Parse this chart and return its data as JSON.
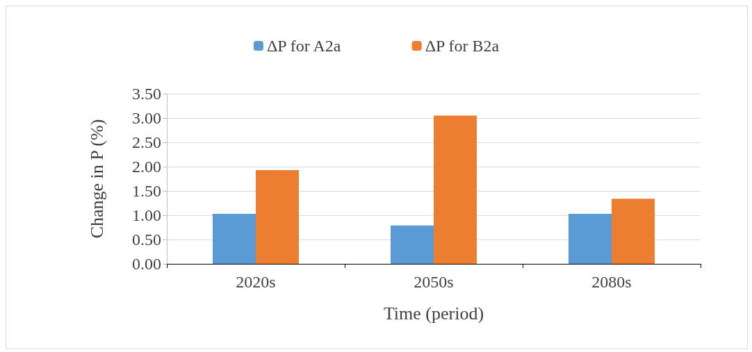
{
  "chart_data": {
    "type": "bar",
    "xlabel": "Time (period)",
    "ylabel": "Change in P (%)",
    "categories": [
      "2020s",
      "2050s",
      "2080s"
    ],
    "series": [
      {
        "name": "ΔP for A2a",
        "color": "#5b9bd5",
        "values": [
          1.03,
          0.79,
          1.03
        ]
      },
      {
        "name": "ΔP for B2a",
        "color": "#ed7d31",
        "values": [
          1.93,
          3.05,
          1.34
        ]
      }
    ],
    "ylim": [
      0,
      3.5
    ],
    "yticks": [
      {
        "value": 0,
        "label": "0.00"
      },
      {
        "value": 0.5,
        "label": "0.50"
      },
      {
        "value": 1,
        "label": "1.00"
      },
      {
        "value": 1.5,
        "label": "1.50"
      },
      {
        "value": 2,
        "label": "2.00"
      },
      {
        "value": 2.5,
        "label": "2.50"
      },
      {
        "value": 3,
        "label": "3.00"
      },
      {
        "value": 3.5,
        "label": "3.50"
      }
    ],
    "grid": "y",
    "legend": "top"
  }
}
